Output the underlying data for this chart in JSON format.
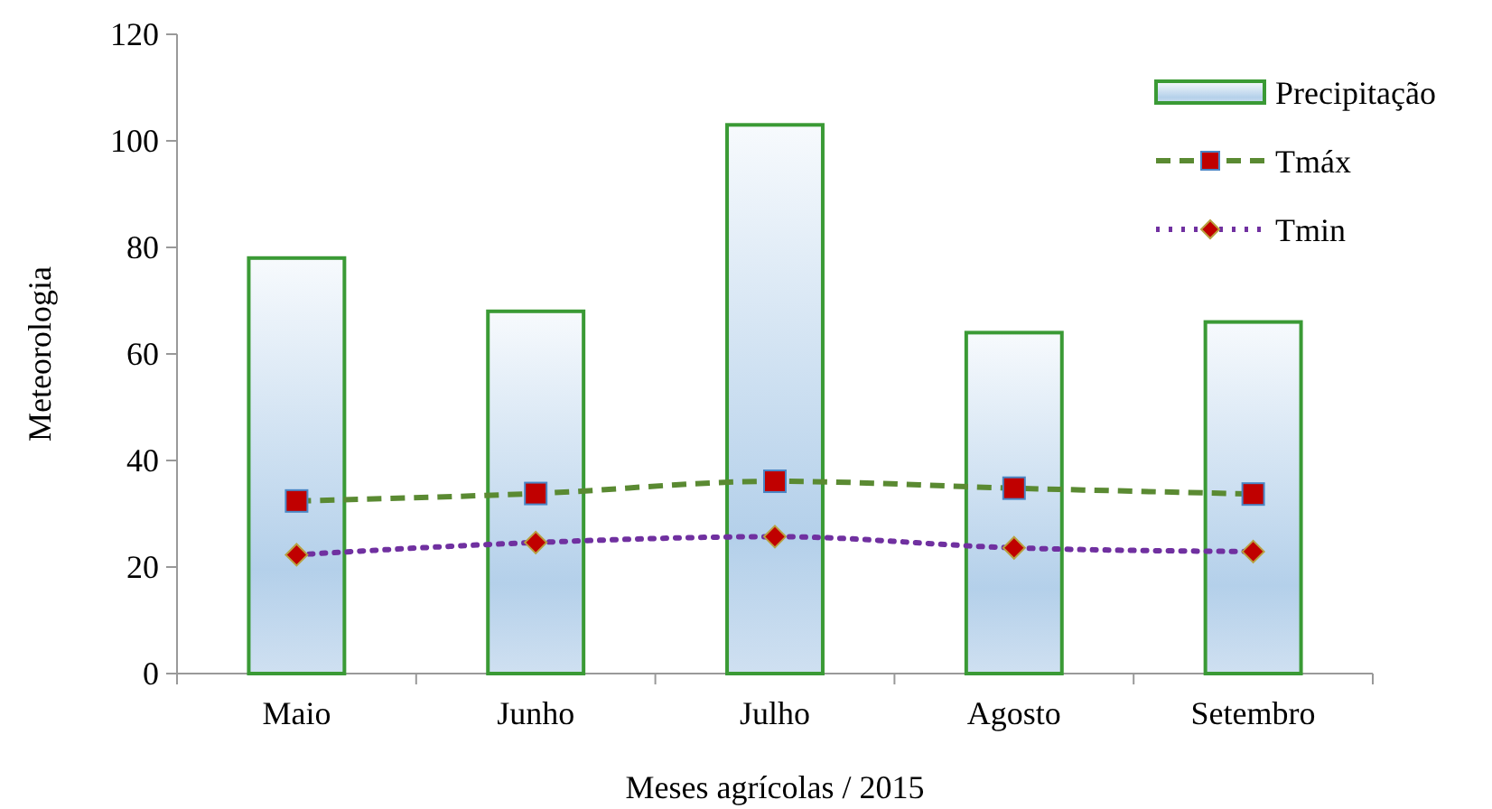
{
  "chart_data": {
    "type": "bar",
    "xlabel": "Meses agrícolas / 2015",
    "ylabel": "Meteorologia",
    "categories": [
      "Maio",
      "Junho",
      "Julho",
      "Agosto",
      "Setembro"
    ],
    "ylim": [
      0,
      120
    ],
    "yticks": [
      0,
      20,
      40,
      60,
      80,
      100,
      120
    ],
    "grid": false,
    "legend": "top right",
    "series": [
      {
        "name": "Precipitação",
        "color": "#3a9a35",
        "values": [
          78,
          68,
          103,
          64,
          66
        ]
      },
      {
        "name": "Tmáx",
        "type": "line",
        "color": "#5a8a32",
        "line_style": "dashed",
        "marker": "square",
        "values": [
          32.4,
          33.8,
          36.1,
          34.8,
          33.7
        ]
      },
      {
        "name": "Tmin",
        "type": "line",
        "color": "#7030a0",
        "line_style": "dotted",
        "marker": "diamond",
        "values": [
          22.3,
          24.6,
          25.7,
          23.6,
          22.9
        ]
      }
    ]
  }
}
